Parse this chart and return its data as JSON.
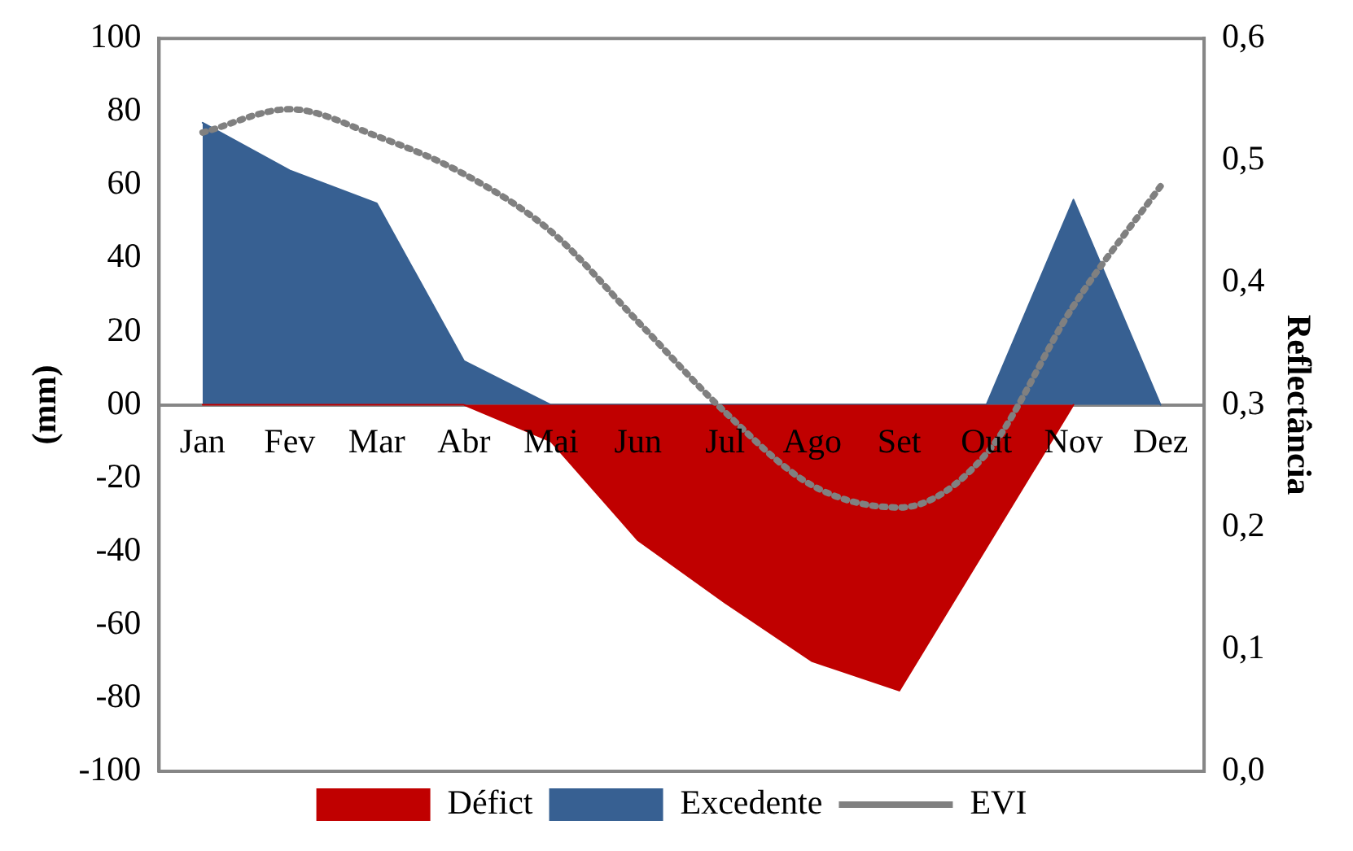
{
  "chart_data": {
    "type": "area",
    "categories": [
      "Jan",
      "Fev",
      "Mar",
      "Abr",
      "Mai",
      "Jun",
      "Jul",
      "Ago",
      "Set",
      "Out",
      "Nov",
      "Dez"
    ],
    "series": [
      {
        "name": "Défict",
        "color": "#c00000",
        "values": [
          0,
          0,
          0,
          0,
          -10,
          -37,
          -54,
          -70,
          -78,
          -39,
          0,
          null
        ]
      },
      {
        "name": "Excedente",
        "color": "#376092",
        "values": [
          77,
          64,
          55,
          12,
          0,
          0,
          0,
          0,
          0,
          0,
          56,
          0
        ]
      },
      {
        "name": "EVI",
        "type": "line",
        "axis": "y2",
        "color": "#808080",
        "line_style": "dotted",
        "marker": "none",
        "values": [
          0.523,
          0.542,
          0.52,
          0.489,
          0.442,
          0.368,
          0.294,
          0.234,
          0.216,
          0.26,
          0.381,
          0.479
        ]
      }
    ],
    "ylabel": "(mm)",
    "y2label": "Reflectância",
    "ylim": [
      -100,
      100
    ],
    "yticks": [
      -100,
      -80,
      -60,
      -40,
      -20,
      {
        "value": 0,
        "label": "00"
      },
      20,
      40,
      60,
      80,
      100
    ],
    "y2lim": [
      0,
      0.6
    ],
    "y2ticks": [
      {
        "value": 0,
        "label": "0,0"
      },
      {
        "value": 0.1,
        "label": "0,1"
      },
      {
        "value": 0.2,
        "label": "0,2"
      },
      {
        "value": 0.3,
        "label": "0,3"
      },
      {
        "value": 0.4,
        "label": "0,4"
      },
      {
        "value": 0.5,
        "label": "0,5"
      },
      {
        "value": 0.6,
        "label": "0,6"
      }
    ],
    "grid": false,
    "legend": "bottom"
  }
}
